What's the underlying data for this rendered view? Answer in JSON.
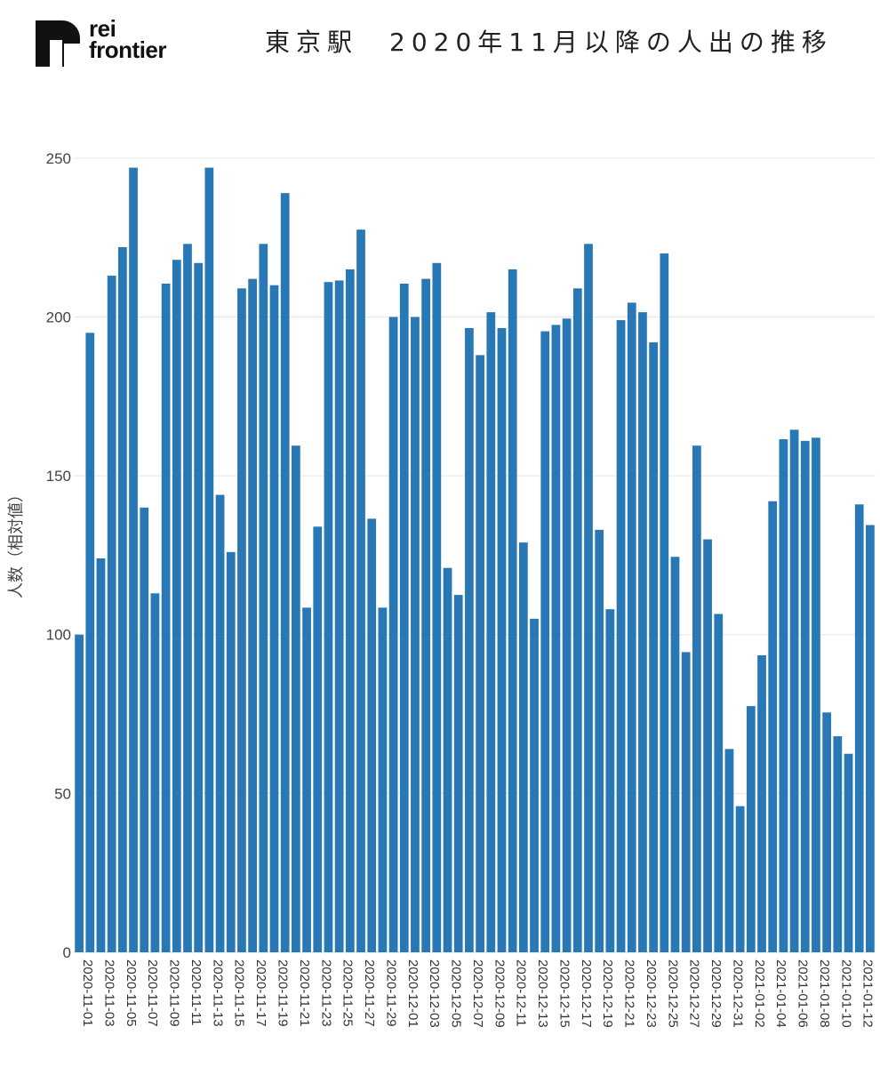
{
  "logo": {
    "line1": "rei",
    "line2": "frontier"
  },
  "title": "東京駅　2020年11月以降の人出の推移",
  "chart_data": {
    "type": "bar",
    "title": "東京駅　2020年11月以降の人出の推移",
    "ylabel": "人数（相対値）",
    "xlabel": "",
    "ylim": [
      0,
      255
    ],
    "yticks": [
      0,
      50,
      100,
      150,
      200,
      250
    ],
    "grid": true,
    "bar_color": "#2878b5",
    "categories": [
      "2020-11-01",
      "2020-11-02",
      "2020-11-03",
      "2020-11-04",
      "2020-11-05",
      "2020-11-06",
      "2020-11-07",
      "2020-11-08",
      "2020-11-09",
      "2020-11-10",
      "2020-11-11",
      "2020-11-12",
      "2020-11-13",
      "2020-11-14",
      "2020-11-15",
      "2020-11-16",
      "2020-11-17",
      "2020-11-18",
      "2020-11-19",
      "2020-11-20",
      "2020-11-21",
      "2020-11-22",
      "2020-11-23",
      "2020-11-24",
      "2020-11-25",
      "2020-11-26",
      "2020-11-27",
      "2020-11-28",
      "2020-11-29",
      "2020-11-30",
      "2020-12-01",
      "2020-12-02",
      "2020-12-03",
      "2020-12-04",
      "2020-12-05",
      "2020-12-06",
      "2020-12-07",
      "2020-12-08",
      "2020-12-09",
      "2020-12-10",
      "2020-12-11",
      "2020-12-12",
      "2020-12-13",
      "2020-12-14",
      "2020-12-15",
      "2020-12-16",
      "2020-12-17",
      "2020-12-18",
      "2020-12-19",
      "2020-12-20",
      "2020-12-21",
      "2020-12-22",
      "2020-12-23",
      "2020-12-24",
      "2020-12-25",
      "2020-12-26",
      "2020-12-27",
      "2020-12-28",
      "2020-12-29",
      "2020-12-30",
      "2020-12-31",
      "2021-01-01",
      "2021-01-02",
      "2021-01-03",
      "2021-01-04",
      "2021-01-05",
      "2021-01-06",
      "2021-01-07",
      "2021-01-08",
      "2021-01-09",
      "2021-01-10",
      "2021-01-11",
      "2021-01-12",
      "2021-01-13"
    ],
    "tick_labels": [
      "2020-11-01",
      "2020-11-03",
      "2020-11-05",
      "2020-11-07",
      "2020-11-09",
      "2020-11-11",
      "2020-11-13",
      "2020-11-15",
      "2020-11-17",
      "2020-11-19",
      "2020-11-21",
      "2020-11-23",
      "2020-11-25",
      "2020-11-27",
      "2020-11-29",
      "2020-12-01",
      "2020-12-03",
      "2020-12-05",
      "2020-12-07",
      "2020-12-09",
      "2020-12-11",
      "2020-12-13",
      "2020-12-15",
      "2020-12-17",
      "2020-12-19",
      "2020-12-21",
      "2020-12-23",
      "2020-12-25",
      "2020-12-27",
      "2020-12-29",
      "2020-12-31",
      "2021-01-02",
      "2021-01-04",
      "2021-01-06",
      "2021-01-08",
      "2021-01-10",
      "2021-01-12"
    ],
    "values": [
      100,
      195,
      124,
      213,
      222,
      247,
      140,
      113,
      210.5,
      218,
      223,
      217,
      247,
      144,
      126,
      209,
      212,
      223,
      210,
      239,
      159.5,
      108.5,
      134,
      211,
      211.5,
      215,
      227.5,
      136.5,
      108.5,
      200,
      210.5,
      200,
      212,
      217,
      121,
      112.5,
      196.5,
      188,
      201.5,
      196.5,
      215,
      129,
      105,
      195.5,
      197.5,
      199.5,
      209,
      223,
      133,
      108,
      199,
      204.5,
      201.5,
      192,
      220,
      124.5,
      94.5,
      159.5,
      130,
      106.5,
      64,
      46,
      77.5,
      93.5,
      142,
      161.5,
      164.5,
      161,
      162,
      75.5,
      68,
      62.5,
      141,
      134.5
    ]
  }
}
